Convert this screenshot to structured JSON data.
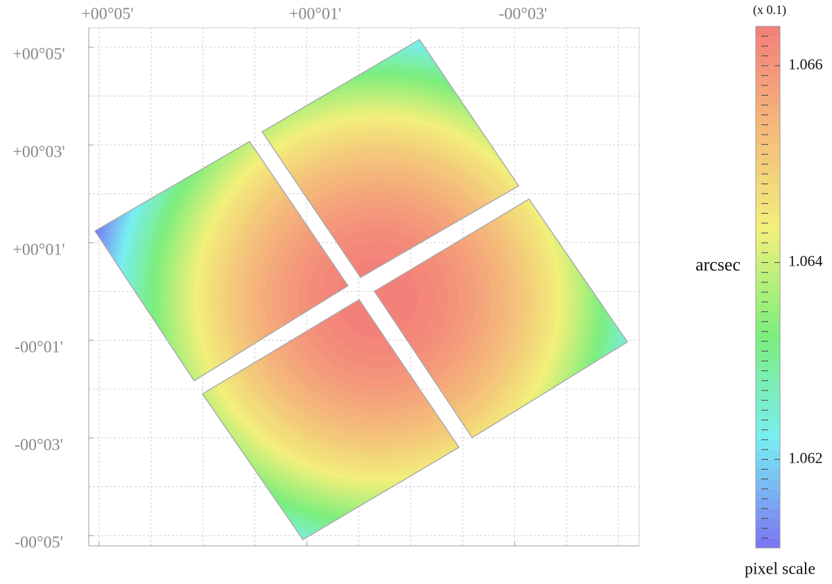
{
  "chart_data": {
    "type": "contour",
    "xticks": [
      {
        "value": 5,
        "label": "+00°05'"
      },
      {
        "value": 1,
        "label": "+00°01'"
      },
      {
        "value": -3,
        "label": "-00°03'"
      }
    ],
    "yticks": [
      {
        "value": 5,
        "label": "+00°05'"
      },
      {
        "value": 3,
        "label": "+00°03'"
      },
      {
        "value": 1,
        "label": "+00°01'"
      },
      {
        "value": -1,
        "label": "-00°01'"
      },
      {
        "value": -3,
        "label": "-00°03'"
      },
      {
        "value": -5,
        "label": "-00°05'"
      }
    ],
    "xlim": [
      5.2,
      -5.4
    ],
    "ylim": [
      -5.21,
      5.4
    ],
    "xgrid": [
      5,
      4,
      3,
      2,
      1,
      0,
      -1,
      -2,
      -3,
      -4,
      -5
    ],
    "ygrid": [
      5,
      4,
      3,
      2,
      1,
      0,
      -1,
      -2,
      -3,
      -4,
      -5
    ],
    "grid": true,
    "colorbar": {
      "label": "arcsec",
      "title": "pixel scale",
      "note": "(x 0.1)",
      "lim": [
        1.0611,
        1.0664
      ],
      "ticks": [
        1.062,
        1.064,
        1.066
      ],
      "colormap": [
        "#7a78f2",
        "#78eef2",
        "#7cee7c",
        "#f2f07a",
        "#f4b87a",
        "#f47a7a"
      ]
    },
    "levels": [
      1.0611,
      1.0612,
      1.0613,
      1.0614,
      1.0615,
      1.0616,
      1.0617,
      1.0618,
      1.0619,
      1.062,
      1.0621,
      1.0622,
      1.0623,
      1.0624,
      1.0625,
      1.0626,
      1.0627,
      1.0628,
      1.0629,
      1.063,
      1.0631,
      1.0632,
      1.0633,
      1.0634,
      1.0635,
      1.0636,
      1.0637,
      1.0638,
      1.0639,
      1.064,
      1.0641,
      1.0642,
      1.0643,
      1.0644,
      1.0645,
      1.0646,
      1.0647,
      1.0648,
      1.0649,
      1.065,
      1.0651,
      1.0652,
      1.0653,
      1.0654,
      1.0655,
      1.0656,
      1.0657,
      1.0658,
      1.0659,
      1.066,
      1.0661,
      1.0662,
      1.0663
    ]
  }
}
